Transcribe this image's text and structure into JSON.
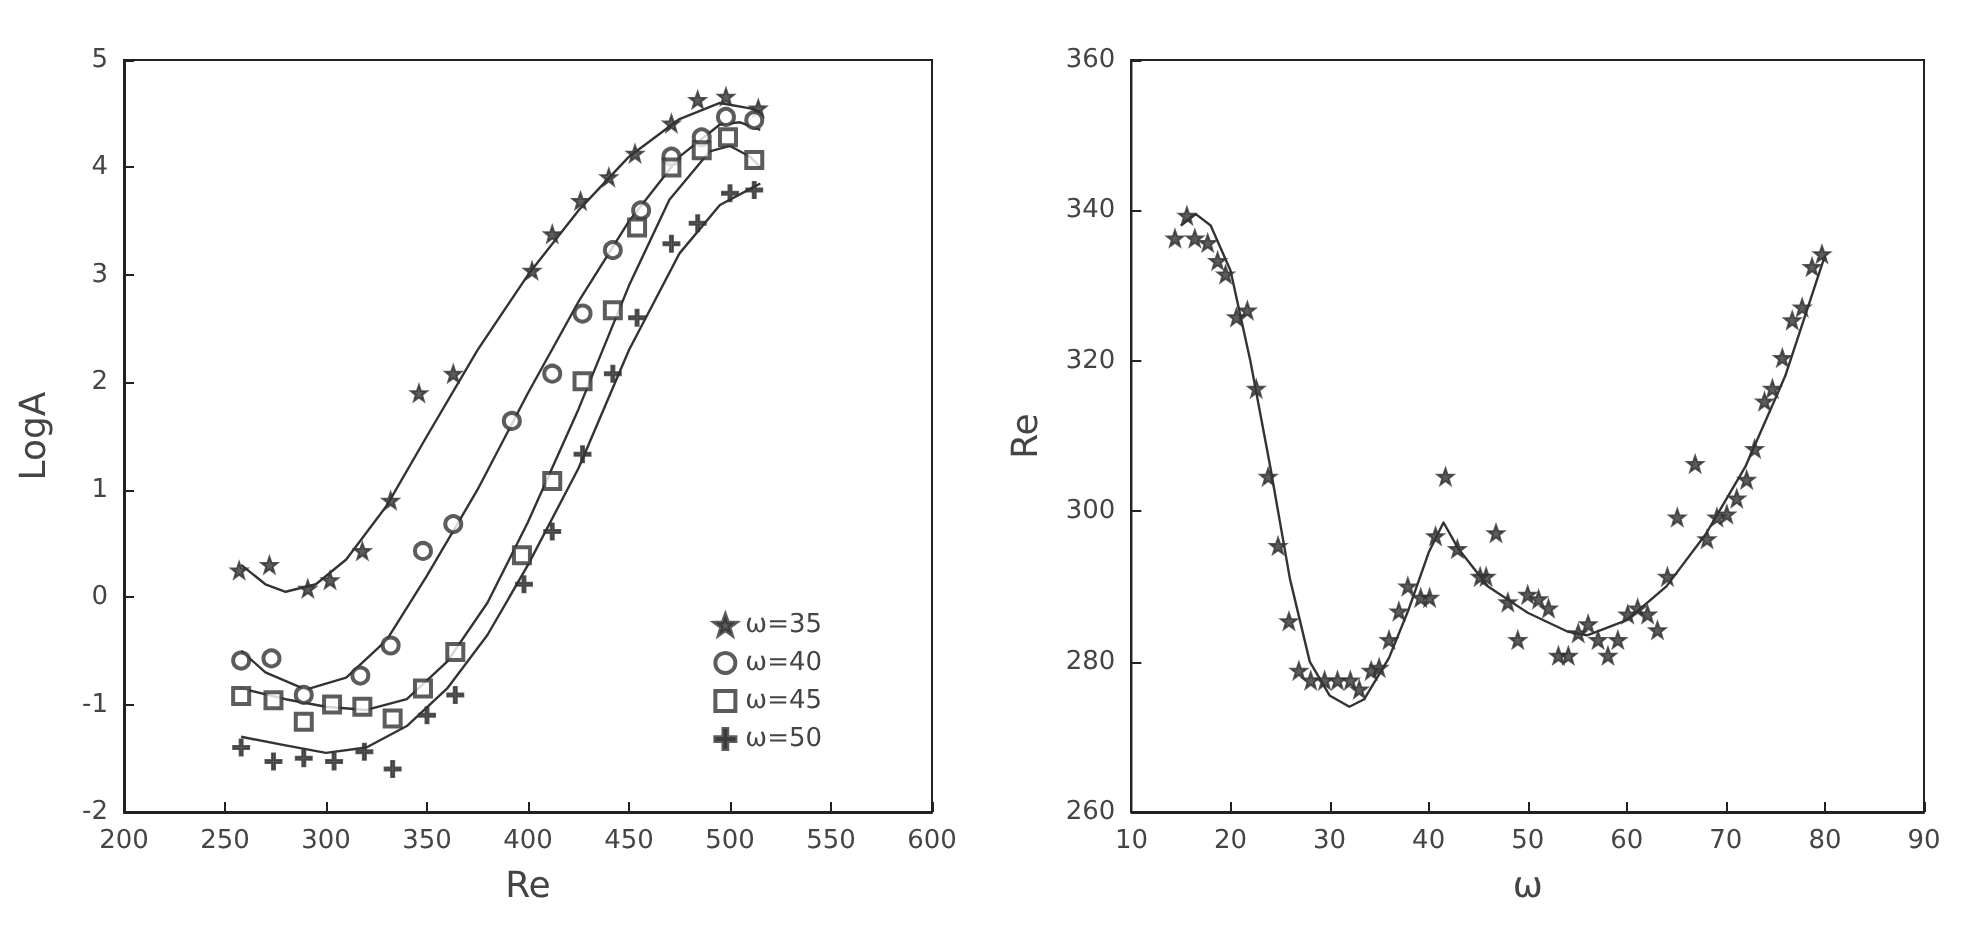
{
  "chart_data": [
    {
      "type": "scatter",
      "xlabel": "Re",
      "ylabel": "LogA",
      "xlim": [
        200,
        600
      ],
      "ylim": [
        -2,
        5
      ],
      "xticks": [
        200,
        250,
        300,
        350,
        400,
        450,
        500,
        550,
        600
      ],
      "yticks": [
        -2,
        -1,
        0,
        1,
        2,
        3,
        4,
        5
      ],
      "grid": false,
      "legend": "bottom right",
      "series": [
        {
          "name": "ω=35",
          "color": "#333333",
          "marker": "star",
          "x": [
            257,
            272,
            291,
            302,
            318,
            332,
            346,
            363,
            402,
            412,
            426,
            440,
            453,
            471,
            484,
            498,
            514
          ],
          "values": [
            0.25,
            0.3,
            0.08,
            0.16,
            0.43,
            0.9,
            1.9,
            2.08,
            3.04,
            3.38,
            3.69,
            3.91,
            4.13,
            4.41,
            4.63,
            4.66,
            4.55
          ]
        },
        {
          "name": "ω=40",
          "color": "#333333",
          "marker": "circle",
          "x": [
            258,
            273,
            289,
            317,
            332,
            348,
            363,
            392,
            412,
            427,
            442,
            456,
            471,
            486,
            498,
            512
          ],
          "values": [
            -0.59,
            -0.57,
            -0.91,
            -0.73,
            -0.45,
            0.43,
            0.68,
            1.64,
            2.08,
            2.64,
            3.23,
            3.6,
            4.1,
            4.28,
            4.47,
            4.44
          ]
        },
        {
          "name": "ω=45",
          "color": "#333333",
          "marker": "square",
          "x": [
            258,
            274,
            289,
            303,
            318,
            333,
            348,
            364,
            397,
            412,
            427,
            442,
            454,
            471,
            486,
            499,
            512
          ],
          "values": [
            -0.92,
            -0.96,
            -1.16,
            -1.0,
            -1.02,
            -1.13,
            -0.85,
            -0.51,
            0.39,
            1.08,
            2.01,
            2.67,
            3.44,
            4.0,
            4.16,
            4.28,
            4.07
          ]
        },
        {
          "name": "ω=50",
          "color": "#333333",
          "marker": "cross",
          "x": [
            258,
            274,
            289,
            304,
            319,
            333,
            350,
            364,
            398,
            412,
            427,
            442,
            454,
            471,
            484,
            500,
            512
          ],
          "values": [
            -1.4,
            -1.53,
            -1.5,
            -1.53,
            -1.44,
            -1.6,
            -1.1,
            -0.91,
            0.12,
            0.61,
            1.33,
            2.08,
            2.6,
            3.29,
            3.48,
            3.76,
            3.79
          ]
        },
        {
          "type": "line",
          "color": "#333333",
          "marker": "none",
          "x": [
            258,
            270,
            280,
            295,
            310,
            330,
            350,
            375,
            400,
            425,
            450,
            475,
            495,
            510,
            515
          ],
          "values": [
            0.3,
            0.12,
            0.05,
            0.12,
            0.35,
            0.85,
            1.5,
            2.3,
            3.0,
            3.6,
            4.1,
            4.45,
            4.6,
            4.55,
            4.52
          ]
        },
        {
          "type": "line",
          "color": "#333333",
          "marker": "none",
          "x": [
            258,
            270,
            290,
            310,
            330,
            350,
            375,
            400,
            425,
            450,
            475,
            495,
            505,
            515
          ],
          "values": [
            -0.5,
            -0.7,
            -0.86,
            -0.75,
            -0.4,
            0.2,
            1.0,
            1.9,
            2.75,
            3.5,
            4.1,
            4.4,
            4.42,
            4.35
          ]
        },
        {
          "type": "line",
          "color": "#333333",
          "marker": "none",
          "x": [
            258,
            280,
            300,
            320,
            340,
            360,
            380,
            400,
            425,
            450,
            470,
            490,
            500,
            510,
            515
          ],
          "values": [
            -0.85,
            -0.95,
            -1.02,
            -1.05,
            -0.95,
            -0.6,
            -0.05,
            0.7,
            1.75,
            2.9,
            3.7,
            4.15,
            4.2,
            4.1,
            4.0
          ]
        },
        {
          "type": "line",
          "color": "#333333",
          "marker": "none",
          "x": [
            258,
            280,
            300,
            320,
            340,
            360,
            380,
            400,
            425,
            450,
            475,
            495,
            510,
            515
          ],
          "values": [
            -1.3,
            -1.38,
            -1.45,
            -1.4,
            -1.2,
            -0.85,
            -0.35,
            0.3,
            1.2,
            2.3,
            3.2,
            3.65,
            3.8,
            3.85
          ]
        }
      ]
    },
    {
      "type": "scatter",
      "xlabel": "ω",
      "ylabel": "Re",
      "xlim": [
        10,
        90
      ],
      "ylim": [
        260,
        360
      ],
      "xticks": [
        10,
        20,
        30,
        40,
        50,
        60,
        70,
        80,
        90
      ],
      "yticks": [
        260,
        280,
        300,
        320,
        340,
        360
      ],
      "grid": false,
      "legend": false,
      "series": [
        {
          "color": "#333333",
          "marker": "star",
          "x": [
            14.4,
            15.6,
            16.4,
            17.7,
            18.7,
            19.5,
            20.6,
            21.7,
            22.6,
            23.8,
            24.8,
            25.9,
            26.9,
            28.1,
            29.5,
            30.8,
            32.1,
            33.0,
            34.2,
            35.0,
            36.0,
            37.0,
            37.9,
            39.2,
            40.1,
            40.7,
            41.7,
            42.9,
            45.2,
            45.8,
            46.8,
            48.0,
            49.0,
            50.0,
            51.1,
            52.1,
            53.1,
            54.1,
            55.1,
            56.1,
            57.1,
            58.1,
            59.1,
            60.1,
            61.1,
            62.1,
            63.1,
            64.1,
            65.1,
            66.9,
            68.1,
            69.1,
            70.1,
            71.1,
            72.1,
            72.9,
            73.9,
            74.7,
            75.7,
            76.7,
            77.7,
            78.7,
            79.7
          ],
          "values": [
            336.3,
            339.3,
            336.3,
            335.7,
            333.3,
            331.5,
            325.8,
            326.7,
            316.3,
            304.6,
            295.4,
            285.4,
            278.8,
            277.5,
            277.5,
            277.5,
            277.5,
            276.3,
            278.8,
            279.2,
            282.9,
            286.7,
            290,
            288.5,
            288.5,
            296.7,
            304.6,
            295,
            291.3,
            291.3,
            297.1,
            287.9,
            282.9,
            288.9,
            288.3,
            287.1,
            280.8,
            280.8,
            283.8,
            285,
            282.9,
            280.8,
            282.9,
            286.3,
            287.1,
            286.3,
            284.2,
            291.3,
            299.2,
            306.3,
            296.3,
            299.2,
            299.6,
            301.7,
            304.2,
            308.3,
            314.6,
            316.3,
            320.4,
            325.4,
            327.1,
            332.5,
            334.2
          ]
        },
        {
          "type": "line",
          "color": "#333333",
          "marker": "none",
          "x": [
            15,
            16.5,
            18,
            20,
            22,
            24,
            26,
            28,
            30,
            32,
            33.5,
            36,
            38,
            40,
            41.5,
            43,
            46,
            50,
            54,
            56,
            60,
            64,
            68,
            72,
            76,
            80
          ],
          "values": [
            338,
            339.5,
            338,
            332,
            320,
            306,
            291,
            280,
            275.5,
            274,
            275,
            280.5,
            287,
            294.5,
            298.5,
            295,
            290,
            286.5,
            284,
            283.5,
            285.5,
            290,
            297,
            306,
            318,
            334
          ]
        }
      ]
    }
  ]
}
